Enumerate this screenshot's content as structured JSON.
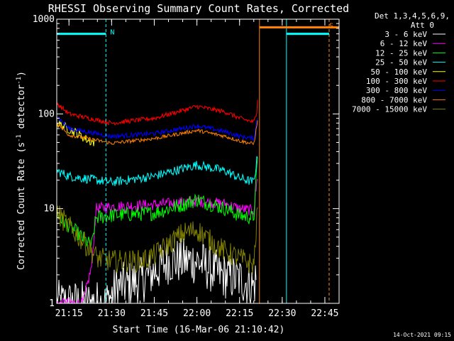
{
  "chart_data": {
    "type": "line",
    "title": "RHESSI Observing Summary Count Rates, Corrected",
    "xlabel": "Start Time (16-Mar-06 21:10:42)",
    "ylabel": "Corrected Count Rate (s⁻¹ detector⁻¹)",
    "ylabel_main": "Corrected Count Rate (s",
    "ylabel_mid": " detector",
    "ylabel_end": ")",
    "ylabel_sup": "-1",
    "y_scale": "log",
    "ylim": [
      1,
      1000
    ],
    "xlim": [
      "21:10:42",
      "22:50:00"
    ],
    "x_ticks": [
      "21:15",
      "21:30",
      "21:45",
      "22:00",
      "22:15",
      "22:30",
      "22:45"
    ],
    "y_ticks": [
      "1",
      "10",
      "100",
      "1000"
    ],
    "legend_header": [
      "Det 1,3,4,5,6,9,",
      "Att 0"
    ],
    "legend_position": "right",
    "timestamp": "14-Oct-2021 09:15",
    "markers": [
      {
        "label": "N",
        "color": "#00ffff",
        "start": "21:10:42",
        "end": "21:28:00",
        "level": 700
      },
      {
        "label": "S",
        "color": "#ff8000",
        "start": "22:22:00",
        "end": "22:50:00",
        "level": 820
      },
      {
        "label": "",
        "color": "#00ffff",
        "start": "22:31:30",
        "end": "22:46:30",
        "level": 700
      }
    ],
    "vlines": [
      {
        "time": "21:10:42",
        "color": "#00ffff",
        "style": "solid"
      },
      {
        "time": "21:28:00",
        "color": "#00ffff",
        "style": "dashed"
      },
      {
        "time": "22:22:00",
        "color": "#ff8000",
        "style": "solid"
      },
      {
        "time": "22:31:30",
        "color": "#00ffff",
        "style": "solid"
      },
      {
        "time": "22:46:30",
        "color": "#00ffff",
        "style": "dashed"
      },
      {
        "time": "22:46:30",
        "color": "#ff8000",
        "style": "dashed"
      }
    ],
    "series": [
      {
        "name": "3 - 6 keV",
        "color": "#ffffff",
        "noise": 0.25,
        "x": [
          "21:10:42",
          "21:20:00",
          "21:28:00",
          "21:32:00",
          "21:40:00",
          "21:50:00",
          "22:00:00",
          "22:08:00",
          "22:15:00",
          "22:20:00",
          "22:21:00"
        ],
        "y": [
          1.0,
          1.0,
          1.0,
          1.5,
          1.7,
          2.8,
          2.8,
          2.0,
          1.8,
          1.5,
          2.0
        ]
      },
      {
        "name": "6 - 12 keV",
        "color": "#ff00ff",
        "noise": 0.06,
        "x": [
          "21:10:42",
          "21:14:00",
          "21:20:00",
          "21:23:00",
          "21:24:30",
          "21:30:00",
          "21:45:00",
          "22:00:00",
          "22:10:00",
          "22:15:00",
          "22:20:00",
          "22:21:30"
        ],
        "y": [
          1.0,
          1.0,
          1.0,
          2.5,
          10.0,
          10.5,
          11.0,
          12.0,
          11.2,
          10.0,
          9.5,
          25.0
        ]
      },
      {
        "name": "12 - 25 keV",
        "color": "#00ff00",
        "noise": 0.08,
        "x": [
          "21:10:42",
          "21:14:00",
          "21:18:00",
          "21:23:00",
          "21:24:30",
          "21:30:00",
          "21:45:00",
          "21:55:00",
          "22:00:00",
          "22:10:00",
          "22:15:00",
          "22:20:00",
          "22:21:30"
        ],
        "y": [
          8.5,
          7.0,
          5.5,
          4.0,
          8.0,
          8.5,
          9.0,
          11.0,
          12.5,
          10.0,
          8.5,
          8.0,
          40.0
        ]
      },
      {
        "name": "25 - 50 keV",
        "color": "#00ffff",
        "noise": 0.05,
        "x": [
          "21:10:42",
          "21:15:00",
          "21:30:00",
          "21:45:00",
          "22:00:00",
          "22:10:00",
          "22:15:00",
          "22:20:00",
          "22:21:30"
        ],
        "y": [
          25.0,
          22.0,
          19.0,
          22.0,
          29.0,
          25.0,
          21.0,
          19.0,
          40.0
        ]
      },
      {
        "name": "50 - 100 keV",
        "color": "#ffff00",
        "noise": 0.05,
        "x": [
          "21:10:42",
          "21:14:00",
          "21:18:00",
          "21:22:00",
          "21:24:00"
        ],
        "y": [
          80.0,
          72.0,
          62.0,
          52.0,
          50.0
        ]
      },
      {
        "name": "100 - 300 keV",
        "color": "#ff0000",
        "noise": 0.025,
        "x": [
          "21:10:42",
          "21:15:00",
          "21:30:00",
          "21:45:00",
          "22:00:00",
          "22:10:00",
          "22:15:00",
          "22:20:00",
          "22:21:00",
          "22:21:30"
        ],
        "y": [
          130.0,
          100.0,
          80.0,
          90.0,
          120.0,
          105.0,
          90.0,
          82.0,
          100.0,
          190.0
        ]
      },
      {
        "name": "300 - 800 keV",
        "color": "#0000ff",
        "noise": 0.025,
        "x": [
          "21:10:42",
          "21:15:00",
          "21:30:00",
          "21:45:00",
          "22:00:00",
          "22:10:00",
          "22:15:00",
          "22:20:00",
          "22:21:30"
        ],
        "y": [
          95.0,
          70.0,
          58.0,
          62.0,
          75.0,
          65.0,
          58.0,
          55.0,
          100.0
        ]
      },
      {
        "name": "800 - 7000 keV",
        "color": "#ff8000",
        "noise": 0.02,
        "x": [
          "21:10:42",
          "21:15:00",
          "21:30:00",
          "21:45:00",
          "22:00:00",
          "22:10:00",
          "22:15:00",
          "22:20:00",
          "22:21:30"
        ],
        "y": [
          80.0,
          60.0,
          49.0,
          55.0,
          67.0,
          58.0,
          52.0,
          48.0,
          90.0
        ]
      },
      {
        "name": "7000 - 15000 keV",
        "color": "#808000",
        "noise": 0.12,
        "x": [
          "21:10:42",
          "21:15:00",
          "21:20:00",
          "21:25:00",
          "21:30:00",
          "21:40:00",
          "21:45:00",
          "21:55:00",
          "22:00:00",
          "22:05:00",
          "22:10:00",
          "22:15:00",
          "22:20:00",
          "22:21:30"
        ],
        "y": [
          9.0,
          6.5,
          4.5,
          3.0,
          2.8,
          2.8,
          3.2,
          5.5,
          6.0,
          4.5,
          3.5,
          3.0,
          2.5,
          12.0
        ]
      }
    ]
  }
}
